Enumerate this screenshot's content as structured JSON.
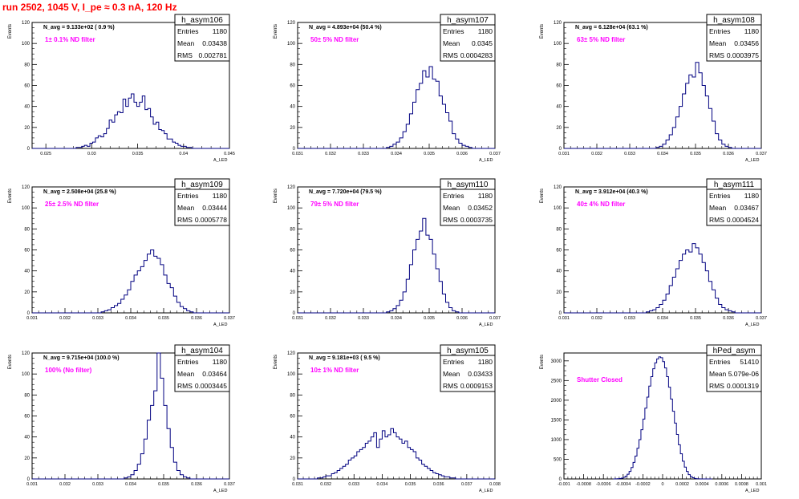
{
  "page_title": "run 2502,  1045 V, I_pe ≈ 0.3 nA, 120 Hz",
  "colors": {
    "title": "#ff0000",
    "histogram": "#000080",
    "annotation": "#ff00ff",
    "frame": "#000000",
    "text": "#000000"
  },
  "chart_data": [
    {
      "type": "bar",
      "name": "h_asym106",
      "title": "h_asym106",
      "xlabel": "A_LED",
      "ylabel": "Events",
      "xlim": [
        0.0235,
        0.045
      ],
      "ylim": [
        0,
        120
      ],
      "xticks": [
        0.025,
        0.03,
        0.035,
        0.04,
        0.045
      ],
      "xtick_labels": [
        "0.025",
        "0.03",
        "0.035",
        "0.04",
        "0.045"
      ],
      "yticks": [
        0,
        20,
        40,
        60,
        80,
        100,
        120
      ],
      "ytick_labels": [
        "0",
        "20",
        "40",
        "60",
        "80",
        "100",
        "120"
      ],
      "stats": {
        "Entries": "1180",
        "Mean": "0.03438",
        "RMS": "0.002781"
      },
      "n_avg_text": "N_avg = 9.133e+02 ( 0.9 %)",
      "annotation": "1± 0.1% ND filter",
      "bins_x0": 0.0235,
      "bin_width": 0.0003,
      "values": [
        0,
        0,
        0,
        0,
        0,
        0,
        0,
        0,
        0,
        0,
        0,
        0,
        0,
        0,
        0,
        0,
        1,
        1,
        2,
        3,
        2,
        5,
        6,
        10,
        12,
        11,
        14,
        19,
        27,
        25,
        32,
        35,
        34,
        47,
        40,
        48,
        52,
        44,
        40,
        44,
        50,
        37,
        38,
        30,
        23,
        25,
        18,
        17,
        14,
        9,
        9,
        6,
        5,
        3,
        2,
        2,
        1,
        1,
        0,
        0,
        0,
        0,
        0,
        0,
        0,
        0,
        0,
        0,
        0,
        0,
        0,
        0
      ]
    },
    {
      "type": "bar",
      "name": "h_asym107",
      "title": "h_asym107",
      "xlabel": "A_LED",
      "ylabel": "Events",
      "xlim": [
        0.031,
        0.037
      ],
      "ylim": [
        0,
        120
      ],
      "xticks": [
        0.031,
        0.032,
        0.033,
        0.034,
        0.035,
        0.036,
        0.037
      ],
      "xtick_labels": [
        "0.031",
        "0.032",
        "0.033",
        "0.034",
        "0.035",
        "0.036",
        "0.037"
      ],
      "yticks": [
        0,
        20,
        40,
        60,
        80,
        100,
        120
      ],
      "ytick_labels": [
        "0",
        "20",
        "40",
        "60",
        "80",
        "100",
        "120"
      ],
      "stats": {
        "Entries": "1180",
        "Mean": "0.0345",
        "RMS": "0.0004283"
      },
      "n_avg_text": "N_avg = 4.893e+04 (50.4 %)",
      "annotation": "50± 5% ND filter",
      "bins_x0": 0.031,
      "bin_width": 0.0001,
      "values": [
        0,
        0,
        0,
        0,
        0,
        0,
        0,
        0,
        0,
        0,
        0,
        0,
        0,
        0,
        0,
        0,
        0,
        0,
        0,
        0,
        0,
        0,
        0,
        0,
        0,
        0,
        0,
        1,
        2,
        4,
        6,
        10,
        16,
        23,
        33,
        44,
        56,
        62,
        74,
        68,
        78,
        66,
        64,
        50,
        42,
        34,
        26,
        14,
        9,
        5,
        3,
        2,
        1,
        0,
        0,
        0,
        0,
        0,
        0,
        0
      ]
    },
    {
      "type": "bar",
      "name": "h_asym108",
      "title": "h_asym108",
      "xlabel": "A_LED",
      "ylabel": "Events",
      "xlim": [
        0.031,
        0.037
      ],
      "ylim": [
        0,
        120
      ],
      "xticks": [
        0.031,
        0.032,
        0.033,
        0.034,
        0.035,
        0.036,
        0.037
      ],
      "xtick_labels": [
        "0.031",
        "0.032",
        "0.033",
        "0.034",
        "0.035",
        "0.036",
        "0.037"
      ],
      "yticks": [
        0,
        20,
        40,
        60,
        80,
        100,
        120
      ],
      "ytick_labels": [
        "0",
        "20",
        "40",
        "60",
        "80",
        "100",
        "120"
      ],
      "stats": {
        "Entries": "1180",
        "Mean": "0.03456",
        "RMS": "0.0003975"
      },
      "n_avg_text": "N_avg = 6.128e+04 (63.1 %)",
      "annotation": "63± 5% ND filter",
      "bins_x0": 0.031,
      "bin_width": 0.0001,
      "values": [
        0,
        0,
        0,
        0,
        0,
        0,
        0,
        0,
        0,
        0,
        0,
        0,
        0,
        0,
        0,
        0,
        0,
        0,
        0,
        0,
        0,
        0,
        0,
        0,
        0,
        0,
        0,
        0,
        1,
        2,
        4,
        8,
        13,
        20,
        30,
        40,
        52,
        62,
        70,
        68,
        82,
        72,
        60,
        50,
        38,
        26,
        14,
        8,
        4,
        2,
        1,
        0,
        0,
        0,
        0,
        0,
        0,
        0,
        0,
        0
      ]
    },
    {
      "type": "bar",
      "name": "h_asym109",
      "title": "h_asym109",
      "xlabel": "A_LED",
      "ylabel": "Events",
      "xlim": [
        0.031,
        0.037
      ],
      "ylim": [
        0,
        120
      ],
      "xticks": [
        0.031,
        0.032,
        0.033,
        0.034,
        0.035,
        0.036,
        0.037
      ],
      "xtick_labels": [
        "0.031",
        "0.032",
        "0.033",
        "0.034",
        "0.035",
        "0.036",
        "0.037"
      ],
      "yticks": [
        0,
        20,
        40,
        60,
        80,
        100,
        120
      ],
      "ytick_labels": [
        "0",
        "20",
        "40",
        "60",
        "80",
        "100",
        "120"
      ],
      "stats": {
        "Entries": "1180",
        "Mean": "0.03444",
        "RMS": "0.0005778"
      },
      "n_avg_text": "N_avg = 2.508e+04 (25.8 %)",
      "annotation": "25± 2.5% ND filter",
      "bins_x0": 0.031,
      "bin_width": 0.0001,
      "values": [
        0,
        0,
        0,
        0,
        0,
        0,
        0,
        0,
        0,
        0,
        0,
        0,
        0,
        0,
        0,
        0,
        0,
        0,
        0,
        0,
        0,
        1,
        2,
        3,
        5,
        7,
        9,
        13,
        17,
        22,
        30,
        36,
        40,
        44,
        50,
        56,
        60,
        54,
        52,
        46,
        36,
        28,
        24,
        16,
        10,
        6,
        4,
        2,
        1,
        0,
        0,
        0,
        0,
        0,
        0,
        0,
        0,
        0,
        0,
        0
      ]
    },
    {
      "type": "bar",
      "name": "h_asym110",
      "title": "h_asym110",
      "xlabel": "A_LED",
      "ylabel": "Events",
      "xlim": [
        0.031,
        0.037
      ],
      "ylim": [
        0,
        120
      ],
      "xticks": [
        0.031,
        0.032,
        0.033,
        0.034,
        0.035,
        0.036,
        0.037
      ],
      "xtick_labels": [
        "0.031",
        "0.032",
        "0.033",
        "0.034",
        "0.035",
        "0.036",
        "0.037"
      ],
      "yticks": [
        0,
        20,
        40,
        60,
        80,
        100,
        120
      ],
      "ytick_labels": [
        "0",
        "20",
        "40",
        "60",
        "80",
        "100",
        "120"
      ],
      "stats": {
        "Entries": "1180",
        "Mean": "0.03452",
        "RMS": "0.0003735"
      },
      "n_avg_text": "N_avg = 7.720e+04 (79.5 %)",
      "annotation": "79± 5% ND filter",
      "bins_x0": 0.031,
      "bin_width": 0.0001,
      "values": [
        0,
        0,
        0,
        0,
        0,
        0,
        0,
        0,
        0,
        0,
        0,
        0,
        0,
        0,
        0,
        0,
        0,
        0,
        0,
        0,
        0,
        0,
        0,
        0,
        0,
        0,
        0,
        1,
        2,
        4,
        7,
        12,
        20,
        32,
        46,
        60,
        70,
        78,
        90,
        74,
        70,
        56,
        42,
        30,
        18,
        10,
        5,
        2,
        1,
        0,
        0,
        0,
        0,
        0,
        0,
        0,
        0,
        0,
        0,
        0
      ]
    },
    {
      "type": "bar",
      "name": "h_asym111",
      "title": "h_asym111",
      "xlabel": "A_LED",
      "ylabel": "Events",
      "xlim": [
        0.031,
        0.037
      ],
      "ylim": [
        0,
        120
      ],
      "xticks": [
        0.031,
        0.032,
        0.033,
        0.034,
        0.035,
        0.036,
        0.037
      ],
      "xtick_labels": [
        "0.031",
        "0.032",
        "0.033",
        "0.034",
        "0.035",
        "0.036",
        "0.037"
      ],
      "yticks": [
        0,
        20,
        40,
        60,
        80,
        100,
        120
      ],
      "ytick_labels": [
        "0",
        "20",
        "40",
        "60",
        "80",
        "100",
        "120"
      ],
      "stats": {
        "Entries": "1180",
        "Mean": "0.03467",
        "RMS": "0.0004524"
      },
      "n_avg_text": "N_avg = 3.912e+04 (40.3 %)",
      "annotation": "40± 4% ND filter",
      "bins_x0": 0.031,
      "bin_width": 0.0001,
      "values": [
        0,
        0,
        0,
        0,
        0,
        0,
        0,
        0,
        0,
        0,
        0,
        0,
        0,
        0,
        0,
        0,
        0,
        0,
        0,
        0,
        0,
        0,
        0,
        0,
        0,
        1,
        2,
        3,
        5,
        8,
        12,
        18,
        26,
        34,
        42,
        50,
        56,
        60,
        58,
        66,
        62,
        56,
        48,
        40,
        30,
        22,
        14,
        8,
        5,
        3,
        2,
        1,
        0,
        0,
        0,
        0,
        0,
        0,
        0,
        0
      ]
    },
    {
      "type": "bar",
      "name": "h_asym104",
      "title": "h_asym104",
      "xlabel": "A_LED",
      "ylabel": "Events",
      "xlim": [
        0.031,
        0.037
      ],
      "ylim": [
        0,
        120
      ],
      "xticks": [
        0.031,
        0.032,
        0.033,
        0.034,
        0.035,
        0.036,
        0.037
      ],
      "xtick_labels": [
        "0.031",
        "0.032",
        "0.033",
        "0.034",
        "0.035",
        "0.036",
        "0.037"
      ],
      "yticks": [
        0,
        20,
        40,
        60,
        80,
        100,
        120
      ],
      "ytick_labels": [
        "0",
        "20",
        "40",
        "60",
        "80",
        "100",
        "120"
      ],
      "stats": {
        "Entries": "1180",
        "Mean": "0.03464",
        "RMS": "0.0003445"
      },
      "n_avg_text": "N_avg = 9.715e+04 (100.0 %)",
      "annotation": "100% (No filter)",
      "bins_x0": 0.031,
      "bin_width": 0.0001,
      "values": [
        0,
        0,
        0,
        0,
        0,
        0,
        0,
        0,
        0,
        0,
        0,
        0,
        0,
        0,
        0,
        0,
        0,
        0,
        0,
        0,
        0,
        0,
        0,
        0,
        0,
        0,
        0,
        0,
        1,
        2,
        4,
        8,
        14,
        24,
        38,
        56,
        70,
        84,
        120,
        96,
        70,
        48,
        30,
        16,
        8,
        4,
        2,
        1,
        0,
        0,
        0,
        0,
        0,
        0,
        0,
        0,
        0,
        0,
        0,
        0
      ]
    },
    {
      "type": "bar",
      "name": "h_asym105",
      "title": "h_asym105",
      "xlabel": "A_LED",
      "ylabel": "Events",
      "xlim": [
        0.031,
        0.038
      ],
      "ylim": [
        0,
        120
      ],
      "xticks": [
        0.031,
        0.032,
        0.033,
        0.034,
        0.035,
        0.036,
        0.037,
        0.038
      ],
      "xtick_labels": [
        "0.031",
        "0.032",
        "0.033",
        "0.034",
        "0.035",
        "0.036",
        "0.037",
        "0.038"
      ],
      "yticks": [
        0,
        20,
        40,
        60,
        80,
        100,
        120
      ],
      "ytick_labels": [
        "0",
        "20",
        "40",
        "60",
        "80",
        "100",
        "120"
      ],
      "stats": {
        "Entries": "1180",
        "Mean": "0.03433",
        "RMS": "0.0009153"
      },
      "n_avg_text": "N_avg = 9.181e+03 ( 9.5 %)",
      "annotation": "10± 1% ND filter",
      "bins_x0": 0.031,
      "bin_width": 0.0001,
      "values": [
        0,
        0,
        0,
        0,
        0,
        0,
        0,
        1,
        1,
        2,
        3,
        3,
        5,
        6,
        8,
        10,
        12,
        14,
        18,
        20,
        22,
        26,
        28,
        30,
        34,
        36,
        40,
        44,
        30,
        38,
        46,
        40,
        42,
        48,
        44,
        40,
        38,
        34,
        36,
        30,
        28,
        26,
        20,
        18,
        14,
        12,
        10,
        8,
        6,
        5,
        4,
        3,
        2,
        2,
        1,
        1,
        0,
        0,
        0,
        0,
        0,
        0,
        0,
        0,
        0,
        0,
        0,
        0,
        0,
        0
      ]
    },
    {
      "type": "bar",
      "name": "hPed_asym",
      "title": "hPed_asym",
      "xlabel": "A_LED",
      "ylabel": "Events",
      "xlim": [
        -0.001,
        0.001
      ],
      "ylim": [
        0,
        3200
      ],
      "xticks": [
        -0.001,
        -0.0008,
        -0.0006,
        -0.0004,
        -0.0002,
        0,
        0.0002,
        0.0004,
        0.0006,
        0.0008,
        0.001
      ],
      "xtick_labels": [
        "-0.001",
        "-0.0008",
        "-0.0006",
        "-0.0004",
        "-0.0002",
        "0",
        "0.0002",
        "0.0004",
        "0.0006",
        "0.0008",
        "0.001"
      ],
      "yticks": [
        0,
        500,
        1000,
        1500,
        2000,
        2500,
        3000
      ],
      "ytick_labels": [
        "0",
        "500",
        "1000",
        "1500",
        "2000",
        "2500",
        "3000"
      ],
      "stats": {
        "Entries": "51410",
        "Mean": "5.079e-06",
        "RMS": "0.0001319"
      },
      "n_avg_text": "",
      "annotation": "Shutter Closed",
      "bins_x0": -0.0005,
      "bin_width": 2e-05,
      "values": [
        0,
        2,
        5,
        10,
        20,
        40,
        70,
        120,
        190,
        290,
        420,
        580,
        780,
        1000,
        1250,
        1520,
        1800,
        2080,
        2360,
        2600,
        2800,
        2950,
        3050,
        3100,
        3080,
        2980,
        2820,
        2600,
        2330,
        2030,
        1720,
        1420,
        1130,
        870,
        640,
        450,
        300,
        190,
        110,
        60,
        30,
        14,
        6,
        2,
        0,
        0,
        0,
        0,
        0,
        0
      ]
    }
  ]
}
